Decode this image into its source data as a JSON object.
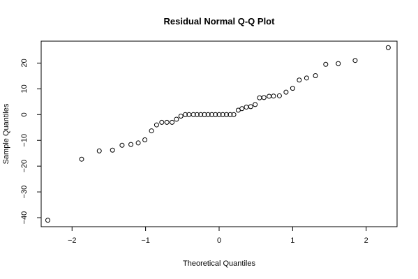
{
  "chart_data": {
    "type": "scatter",
    "title": "Residual Normal Q-Q Plot",
    "xlabel": "Theoretical Quantiles",
    "ylabel": "Sample Quantiles",
    "xlim": [
      -2.42,
      2.42
    ],
    "ylim": [
      -43.5,
      28.5
    ],
    "x_ticks": [
      -2,
      -1,
      0,
      1,
      2
    ],
    "x_tick_labels": [
      "−2",
      "−1",
      "0",
      "1",
      "2"
    ],
    "y_ticks": [
      -40,
      -30,
      -20,
      -10,
      0,
      10,
      20
    ],
    "y_tick_labels": [
      "−40",
      "−30",
      "−20",
      "−10",
      "0",
      "10",
      "20"
    ],
    "grid": false,
    "marker": "open-circle",
    "colors": {
      "points": "#000000",
      "axes": "#000000",
      "background": "#ffffff"
    },
    "points": [
      [
        -2.33,
        -41.0
      ],
      [
        -1.87,
        -17.3
      ],
      [
        -1.63,
        -14.1
      ],
      [
        -1.45,
        -13.8
      ],
      [
        -1.32,
        -11.9
      ],
      [
        -1.2,
        -11.6
      ],
      [
        -1.1,
        -11.0
      ],
      [
        -1.01,
        -9.8
      ],
      [
        -0.92,
        -6.3
      ],
      [
        -0.85,
        -4.0
      ],
      [
        -0.78,
        -3.0
      ],
      [
        -0.71,
        -3.0
      ],
      [
        -0.64,
        -3.0
      ],
      [
        -0.58,
        -1.8
      ],
      [
        -0.52,
        -0.6
      ],
      [
        -0.46,
        0.0
      ],
      [
        -0.41,
        0.0
      ],
      [
        -0.35,
        0.0
      ],
      [
        -0.3,
        0.0
      ],
      [
        -0.25,
        0.0
      ],
      [
        -0.2,
        0.0
      ],
      [
        -0.15,
        0.0
      ],
      [
        -0.1,
        0.0
      ],
      [
        -0.05,
        0.0
      ],
      [
        0.0,
        0.0
      ],
      [
        0.05,
        0.0
      ],
      [
        0.1,
        0.0
      ],
      [
        0.15,
        0.0
      ],
      [
        0.2,
        0.0
      ],
      [
        0.26,
        1.7
      ],
      [
        0.31,
        2.3
      ],
      [
        0.37,
        2.9
      ],
      [
        0.43,
        3.1
      ],
      [
        0.49,
        3.9
      ],
      [
        0.55,
        6.5
      ],
      [
        0.61,
        6.6
      ],
      [
        0.68,
        7.1
      ],
      [
        0.74,
        7.2
      ],
      [
        0.82,
        7.3
      ],
      [
        0.91,
        8.7
      ],
      [
        1.0,
        10.2
      ],
      [
        1.09,
        13.4
      ],
      [
        1.19,
        14.2
      ],
      [
        1.31,
        15.1
      ],
      [
        1.45,
        19.5
      ],
      [
        1.62,
        19.8
      ],
      [
        1.85,
        21.0
      ],
      [
        2.3,
        26.0
      ]
    ]
  }
}
